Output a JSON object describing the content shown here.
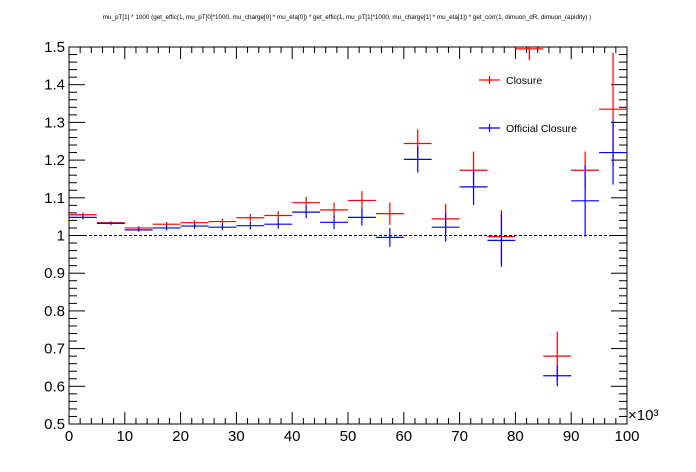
{
  "chart_data": {
    "type": "scatter",
    "title": "mu_pT[1] * 1000  (get_effic(1, mu_pT[0]*1000, mu_charge[0] *  mu_eta[0]) * get_effic(1, mu_pT[1]*1000, mu_charge[1] *  mu_eta[1]) * get_corr(1, dimuon_dR, dimuon_rapidity) )",
    "xlabel": "",
    "ylabel": "",
    "x_multiplier_label": "×10³",
    "xlim": [
      0,
      100
    ],
    "ylim": [
      0.5,
      1.5
    ],
    "x_ticks": [
      "0",
      "10",
      "20",
      "30",
      "40",
      "50",
      "60",
      "70",
      "80",
      "90",
      "100"
    ],
    "y_ticks": [
      "0.5",
      "0.6",
      "0.7",
      "0.8",
      "0.9",
      "1",
      "1.1",
      "1.2",
      "1.3",
      "1.4",
      "1.5"
    ],
    "reference_line_y": 1.0,
    "grid": false,
    "legend_position": "top-right",
    "series": [
      {
        "name": "Closure",
        "color": "#ff0000",
        "x": [
          2.5,
          7.5,
          12.5,
          17.5,
          22.5,
          27.5,
          32.5,
          37.5,
          42.5,
          47.5,
          52.5,
          57.5,
          62.5,
          67.5,
          72.5,
          77.5,
          82.5,
          87.5,
          92.5,
          97.5
        ],
        "x_err": [
          2.5,
          2.5,
          2.5,
          2.5,
          2.5,
          2.5,
          2.5,
          2.5,
          2.5,
          2.5,
          2.5,
          2.5,
          2.5,
          2.5,
          2.5,
          2.5,
          2.5,
          2.5,
          2.5,
          2.5
        ],
        "y": [
          1.055,
          1.034,
          1.02,
          1.03,
          1.034,
          1.037,
          1.047,
          1.053,
          1.087,
          1.068,
          1.093,
          1.058,
          1.244,
          1.044,
          1.173,
          0.997,
          1.495,
          0.68,
          1.173,
          1.335
        ],
        "y_err": [
          0.006,
          0.004,
          0.005,
          0.006,
          0.007,
          0.008,
          0.01,
          0.012,
          0.016,
          0.02,
          0.025,
          0.03,
          0.038,
          0.04,
          0.05,
          0.07,
          0.03,
          0.065,
          0.05,
          0.15
        ]
      },
      {
        "name": "Official Closure",
        "color": "#0000ff",
        "x": [
          2.5,
          7.5,
          12.5,
          17.5,
          22.5,
          27.5,
          32.5,
          37.5,
          42.5,
          47.5,
          52.5,
          57.5,
          62.5,
          67.5,
          72.5,
          77.5,
          87.5,
          92.5,
          97.5
        ],
        "x_err": [
          2.5,
          2.5,
          2.5,
          2.5,
          2.5,
          2.5,
          2.5,
          2.5,
          2.5,
          2.5,
          2.5,
          2.5,
          2.5,
          2.5,
          2.5,
          2.5,
          2.5,
          2.5,
          2.5
        ],
        "y": [
          1.048,
          1.032,
          1.015,
          1.02,
          1.025,
          1.022,
          1.026,
          1.03,
          1.062,
          1.035,
          1.048,
          0.995,
          1.202,
          1.022,
          1.129,
          0.987,
          0.628,
          1.092,
          1.22
        ],
        "y_err": [
          0.006,
          0.004,
          0.005,
          0.006,
          0.007,
          0.008,
          0.01,
          0.012,
          0.016,
          0.018,
          0.022,
          0.025,
          0.035,
          0.038,
          0.048,
          0.07,
          0.028,
          0.095,
          0.085
        ]
      }
    ]
  }
}
